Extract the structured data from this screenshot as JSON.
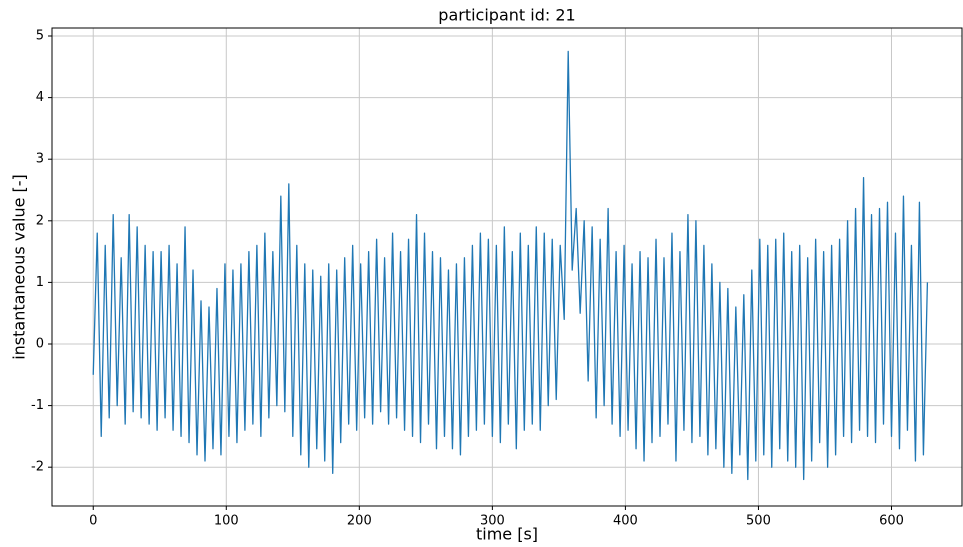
{
  "chart_data": {
    "type": "line",
    "title": "participant id: 21",
    "xlabel": "time [s]",
    "ylabel": "instantaneous value [-]",
    "color": "#1f77b4",
    "grid": true,
    "xlim": [
      -31,
      653
    ],
    "ylim": [
      -2.63,
      5.13
    ],
    "xticks": [
      0,
      100,
      200,
      300,
      400,
      500,
      600
    ],
    "yticks": [
      -2,
      -1,
      0,
      1,
      2,
      3,
      4,
      5
    ],
    "x": [
      0,
      3,
      6,
      9,
      12,
      15,
      18,
      21,
      24,
      27,
      30,
      33,
      36,
      39,
      42,
      45,
      48,
      51,
      54,
      57,
      60,
      63,
      66,
      69,
      72,
      75,
      78,
      81,
      84,
      87,
      90,
      93,
      96,
      99,
      102,
      105,
      108,
      111,
      114,
      117,
      120,
      123,
      126,
      129,
      132,
      135,
      138,
      141,
      144,
      147,
      150,
      153,
      156,
      159,
      162,
      165,
      168,
      171,
      174,
      177,
      180,
      183,
      186,
      189,
      192,
      195,
      198,
      201,
      204,
      207,
      210,
      213,
      216,
      219,
      222,
      225,
      228,
      231,
      234,
      237,
      240,
      243,
      246,
      249,
      252,
      255,
      258,
      261,
      264,
      267,
      270,
      273,
      276,
      279,
      282,
      285,
      288,
      291,
      294,
      297,
      300,
      303,
      306,
      309,
      312,
      315,
      318,
      321,
      324,
      327,
      330,
      333,
      336,
      339,
      342,
      345,
      348,
      351,
      354,
      357,
      360,
      363,
      366,
      369,
      372,
      375,
      378,
      381,
      384,
      387,
      390,
      393,
      396,
      399,
      402,
      405,
      408,
      411,
      414,
      417,
      420,
      423,
      426,
      429,
      432,
      435,
      438,
      441,
      444,
      447,
      450,
      453,
      456,
      459,
      462,
      465,
      468,
      471,
      474,
      477,
      480,
      483,
      486,
      489,
      492,
      495,
      498,
      501,
      504,
      507,
      510,
      513,
      516,
      519,
      522,
      525,
      528,
      531,
      534,
      537,
      540,
      543,
      546,
      549,
      552,
      555,
      558,
      561,
      564,
      567,
      570,
      573,
      576,
      579,
      582,
      585,
      588,
      591,
      594,
      597,
      600,
      603,
      606,
      609,
      612,
      615,
      618,
      621,
      624,
      627
    ],
    "values": [
      -0.5,
      1.8,
      -1.5,
      1.6,
      -1.2,
      2.1,
      -1.0,
      1.4,
      -1.3,
      2.1,
      -1.1,
      1.9,
      -1.2,
      1.6,
      -1.3,
      1.5,
      -1.4,
      1.5,
      -1.2,
      1.6,
      -1.4,
      1.3,
      -1.5,
      1.9,
      -1.6,
      1.2,
      -1.8,
      0.7,
      -1.9,
      0.6,
      -1.7,
      0.9,
      -1.8,
      1.3,
      -1.5,
      1.2,
      -1.6,
      1.3,
      -1.4,
      1.5,
      -1.3,
      1.6,
      -1.5,
      1.8,
      -1.2,
      1.5,
      -1.0,
      2.4,
      -1.1,
      2.6,
      -1.5,
      1.6,
      -1.8,
      1.3,
      -2.0,
      1.2,
      -1.7,
      1.1,
      -1.9,
      1.3,
      -2.1,
      1.2,
      -1.6,
      1.4,
      -1.3,
      1.6,
      -1.4,
      1.3,
      -1.2,
      1.5,
      -1.3,
      1.7,
      -1.1,
      1.4,
      -1.3,
      1.8,
      -1.2,
      1.5,
      -1.4,
      1.7,
      -1.5,
      2.1,
      -1.6,
      1.8,
      -1.3,
      1.5,
      -1.7,
      1.4,
      -1.5,
      1.2,
      -1.7,
      1.3,
      -1.8,
      1.4,
      -1.5,
      1.6,
      -1.4,
      1.8,
      -1.3,
      1.7,
      -1.5,
      1.6,
      -1.6,
      1.9,
      -1.3,
      1.5,
      -1.7,
      1.8,
      -1.4,
      1.6,
      -1.3,
      1.9,
      -1.4,
      1.8,
      -1.0,
      1.7,
      -0.9,
      1.6,
      0.4,
      4.75,
      1.2,
      2.2,
      0.5,
      2.0,
      -0.6,
      1.9,
      -1.2,
      1.7,
      -1.0,
      2.2,
      -1.3,
      1.5,
      -1.5,
      1.6,
      -1.4,
      1.3,
      -1.7,
      1.5,
      -1.9,
      1.4,
      -1.6,
      1.7,
      -1.5,
      1.4,
      -1.3,
      1.8,
      -1.9,
      1.5,
      -1.4,
      2.1,
      -1.6,
      2.0,
      -1.5,
      1.6,
      -1.8,
      1.3,
      -1.7,
      1.0,
      -2.0,
      0.9,
      -2.1,
      0.6,
      -1.8,
      0.8,
      -2.2,
      1.2,
      -1.9,
      1.7,
      -1.8,
      1.6,
      -2.0,
      1.7,
      -1.7,
      1.8,
      -1.9,
      1.5,
      -2.0,
      1.6,
      -2.2,
      1.4,
      -1.9,
      1.7,
      -1.6,
      1.5,
      -2.0,
      1.6,
      -1.8,
      1.7,
      -1.5,
      2.0,
      -1.6,
      2.2,
      -1.4,
      2.7,
      -1.5,
      2.1,
      -1.6,
      2.2,
      -1.3,
      2.3,
      -1.5,
      1.8,
      -1.7,
      2.4,
      -1.4,
      1.6,
      -1.9,
      2.3,
      -1.8,
      1.0
    ]
  }
}
